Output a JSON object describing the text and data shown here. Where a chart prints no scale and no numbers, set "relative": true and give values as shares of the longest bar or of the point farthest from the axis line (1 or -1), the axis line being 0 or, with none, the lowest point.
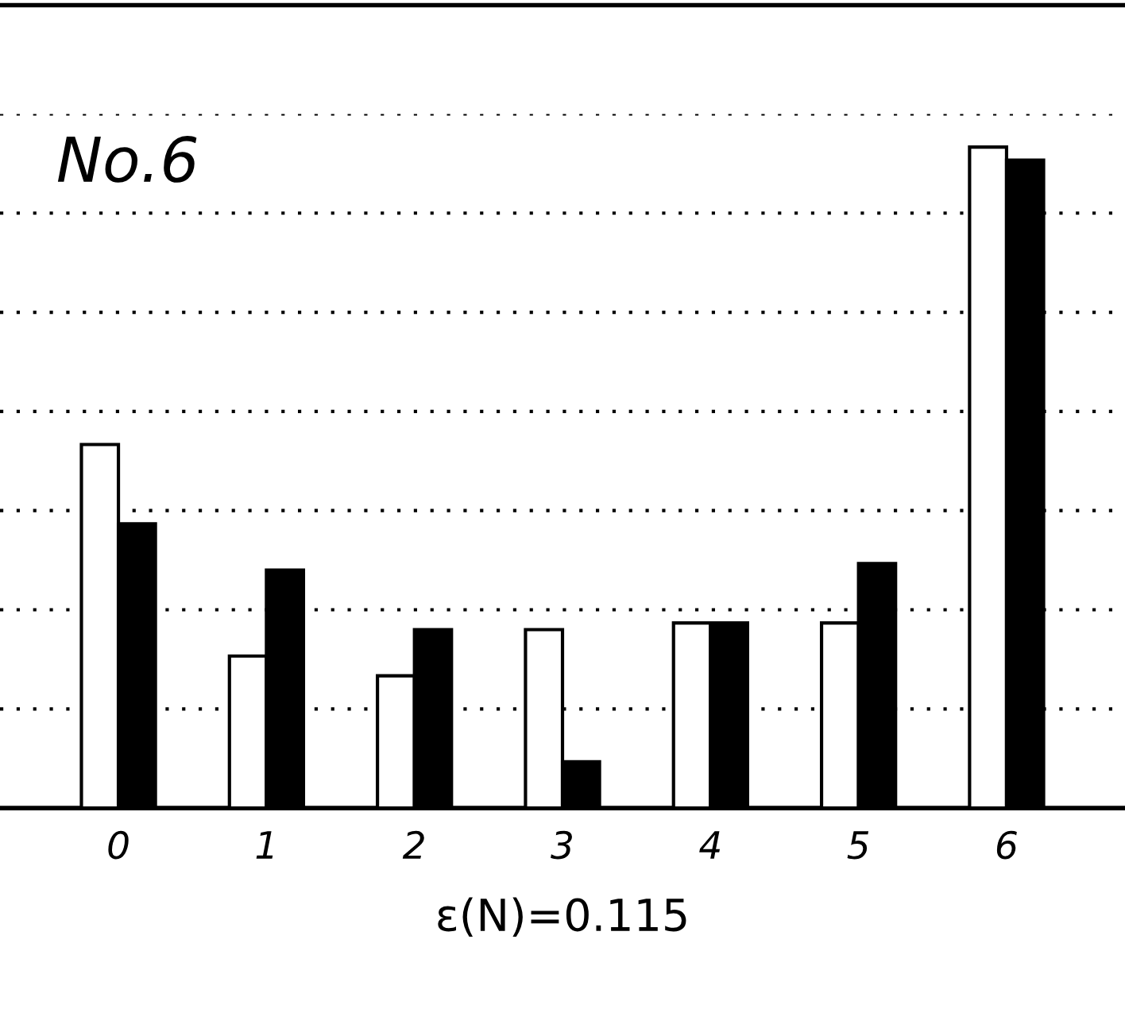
{
  "chart_data": {
    "type": "bar",
    "title": "No.6",
    "xlabel": "ε(N)=0.115",
    "relative": true,
    "grid": "y",
    "categories": [
      "0",
      "1",
      "2",
      "3",
      "4",
      "5",
      "6"
    ],
    "series": [
      {
        "color": "#ffffff",
        "values": [
          0.55,
          0.23,
          0.2,
          0.27,
          0.28,
          0.28,
          1.0
        ]
      },
      {
        "color": "#000000",
        "values": [
          0.43,
          0.36,
          0.27,
          0.07,
          0.28,
          0.37,
          0.98
        ]
      }
    ]
  }
}
